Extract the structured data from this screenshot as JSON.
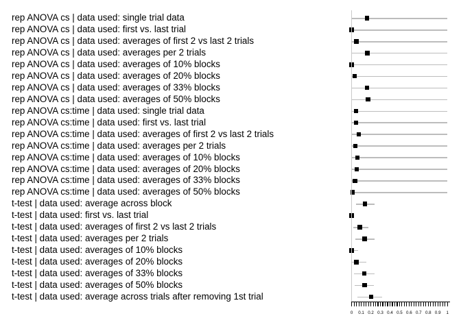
{
  "colors": {
    "background": "#ffffff",
    "text": "#000000",
    "marker": "#000000",
    "range_bar": "#bcbcbc",
    "zero_axis_line": "#c9c9c9",
    "x_axis": "#000000"
  },
  "chart_data": {
    "type": "scatter",
    "subtype": "forest-plot (square point with horizontal range bar per row)",
    "title": "",
    "xlabel": "",
    "ylabel": "",
    "xlim": [
      0,
      1
    ],
    "grid": "off",
    "legend_position": "none",
    "marker_glyph": "filled-black-square",
    "x_tick_values": [
      0,
      0.1,
      0.2,
      0.3,
      0.4,
      0.5,
      0.6,
      0.7,
      0.8,
      0.9,
      1
    ],
    "x_tick_labels": [
      "0",
      "0.1",
      "0.2",
      "0.3",
      "0.4",
      "0.5",
      "0.6",
      "0.7",
      "0.8",
      "0.9",
      "1"
    ],
    "minor_tick_count": 41,
    "rows": [
      {
        "label": "rep ANOVA cs | data used: single trial data",
        "value": 0.16,
        "lo": 0,
        "hi": 1
      },
      {
        "label": "rep ANOVA cs | data used: first vs. last trial",
        "value": 0.0,
        "lo": 0,
        "hi": 1
      },
      {
        "label": "rep ANOVA cs | data used: averages of first 2 vs last 2 trials",
        "value": 0.05,
        "lo": 0,
        "hi": 1
      },
      {
        "label": "rep ANOVA cs | data used: averages per 2 trials",
        "value": 0.165,
        "lo": 0,
        "hi": 1
      },
      {
        "label": "rep ANOVA cs | data used: averages of 10% blocks",
        "value": 0.0,
        "lo": 0,
        "hi": 1
      },
      {
        "label": "rep ANOVA cs | data used: averages of 20% blocks",
        "value": 0.03,
        "lo": 0,
        "hi": 1
      },
      {
        "label": "rep ANOVA cs | data used: averages of 33% blocks",
        "value": 0.16,
        "lo": 0,
        "hi": 1
      },
      {
        "label": "rep ANOVA cs | data used: averages of 50% blocks",
        "value": 0.17,
        "lo": 0,
        "hi": 1
      },
      {
        "label": "rep ANOVA cs:time | data used: single trial data",
        "value": 0.045,
        "lo": 0,
        "hi": 1
      },
      {
        "label": "rep ANOVA cs:time | data used: first vs. last trial",
        "value": 0.045,
        "lo": 0,
        "hi": 1
      },
      {
        "label": "rep ANOVA cs:time | data used: averages of first 2 vs last 2 trials",
        "value": 0.075,
        "lo": 0,
        "hi": 1
      },
      {
        "label": "rep ANOVA cs:time | data used: averages per 2 trials",
        "value": 0.04,
        "lo": 0,
        "hi": 1
      },
      {
        "label": "rep ANOVA cs:time | data used: averages of 10% blocks",
        "value": 0.06,
        "lo": 0,
        "hi": 1
      },
      {
        "label": "rep ANOVA cs:time | data used: averages of 20% blocks",
        "value": 0.055,
        "lo": 0,
        "hi": 1
      },
      {
        "label": "rep ANOVA cs:time | data used: averages of 33% blocks",
        "value": 0.035,
        "lo": 0,
        "hi": 1
      },
      {
        "label": "rep ANOVA cs:time | data used: averages of 50% blocks",
        "value": 0.01,
        "lo": 0,
        "hi": 1
      },
      {
        "label": "t-test | data used: average across block",
        "value": 0.14,
        "lo": 0.045,
        "hi": 0.24
      },
      {
        "label": "t-test | data used: first vs. last trial",
        "value": 0.0,
        "lo": 0.0,
        "hi": 0.0
      },
      {
        "label": "t-test | data used: averages of first 2 vs last 2 trials",
        "value": 0.085,
        "lo": 0.015,
        "hi": 0.175
      },
      {
        "label": "t-test | data used: averages per 2 trials",
        "value": 0.135,
        "lo": 0.04,
        "hi": 0.24
      },
      {
        "label": "t-test | data used: averages of 10% blocks",
        "value": 0.0,
        "lo": 0.0,
        "hi": 0.07
      },
      {
        "label": "t-test | data used: averages of 20% blocks",
        "value": 0.05,
        "lo": 0.0,
        "hi": 0.15
      },
      {
        "label": "t-test | data used: averages of 33% blocks",
        "value": 0.13,
        "lo": 0.025,
        "hi": 0.24
      },
      {
        "label": "t-test | data used: averages of 50% blocks",
        "value": 0.135,
        "lo": 0.035,
        "hi": 0.235
      },
      {
        "label": "t-test | data used: average across trials after removing 1st trial",
        "value": 0.205,
        "lo": 0.06,
        "hi": 0.315
      }
    ]
  }
}
